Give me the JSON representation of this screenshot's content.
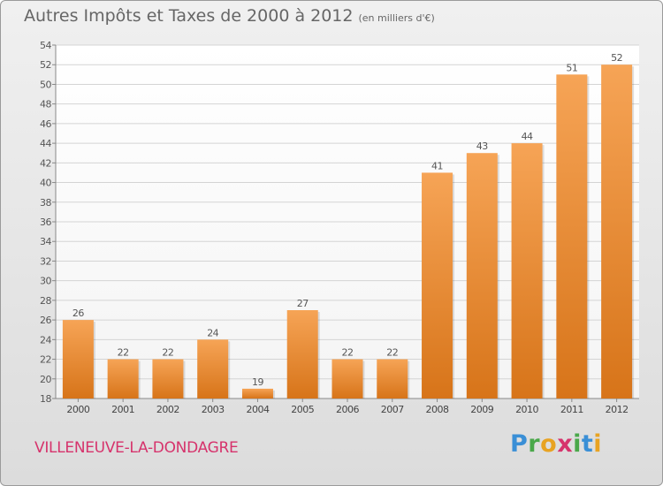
{
  "title": "Autres Impôts et Taxes de 2000 à 2012",
  "subtitle": "(en milliers d'€)",
  "commune": "VILLENEUVE-LA-DONDAGRE",
  "logo": {
    "letters": [
      "P",
      "r",
      "o",
      "x",
      "i",
      "t",
      "i"
    ],
    "colors": [
      "#3a8fd6",
      "#4aa84a",
      "#e8a322",
      "#d6336c",
      "#4aa84a",
      "#3a8fd6",
      "#e8a322"
    ]
  },
  "colors": {
    "bar_top": "#f6a456",
    "bar_bottom": "#d77419",
    "text": "#666666",
    "commune": "#d6336c"
  },
  "chart_data": {
    "type": "bar",
    "categories": [
      "2000",
      "2001",
      "2002",
      "2003",
      "2004",
      "2005",
      "2006",
      "2007",
      "2008",
      "2009",
      "2010",
      "2011",
      "2012"
    ],
    "values": [
      26,
      22,
      22,
      24,
      19,
      27,
      22,
      22,
      41,
      43,
      44,
      51,
      52
    ],
    "data_labels": [
      "26",
      "22",
      "22",
      "24",
      "19",
      "27",
      "22",
      "22",
      "41",
      "43",
      "44",
      "51",
      "52"
    ],
    "yticks": [
      18,
      20,
      22,
      24,
      26,
      28,
      30,
      32,
      34,
      36,
      38,
      40,
      42,
      44,
      46,
      48,
      50,
      52,
      54
    ],
    "ylim": [
      18,
      54
    ],
    "grid": "horizontal",
    "title": "Autres Impôts et Taxes de 2000 à 2012",
    "subtitle": "(en milliers d'€)"
  }
}
